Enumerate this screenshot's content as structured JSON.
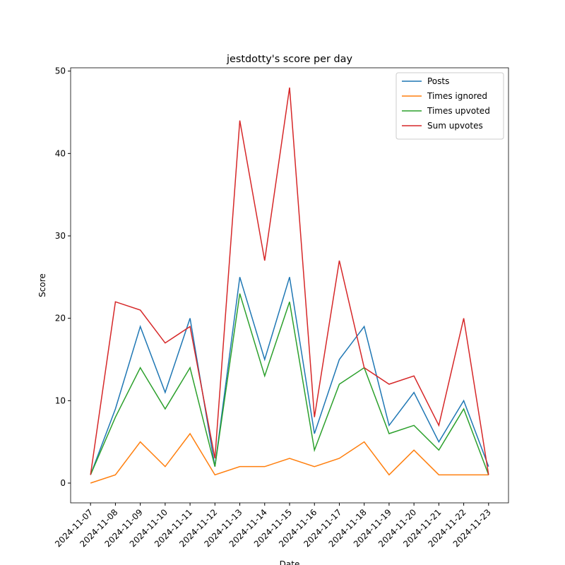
{
  "chart_data": {
    "type": "line",
    "title": "jestdotty's score per day",
    "xlabel": "Date",
    "ylabel": "Score",
    "categories": [
      "2024-11-07",
      "2024-11-08",
      "2024-11-09",
      "2024-11-10",
      "2024-11-11",
      "2024-11-12",
      "2024-11-13",
      "2024-11-14",
      "2024-11-15",
      "2024-11-16",
      "2024-11-17",
      "2024-11-18",
      "2024-11-19",
      "2024-11-20",
      "2024-11-21",
      "2024-11-22",
      "2024-11-23"
    ],
    "series": [
      {
        "name": "Posts",
        "color": "#1f77b4",
        "values": [
          1,
          9,
          19,
          11,
          20,
          2,
          25,
          15,
          25,
          6,
          15,
          19,
          7,
          11,
          5,
          10,
          2
        ]
      },
      {
        "name": "Times ignored",
        "color": "#ff7f0e",
        "values": [
          0,
          1,
          5,
          2,
          6,
          1,
          2,
          2,
          3,
          2,
          3,
          5,
          1,
          4,
          1,
          1,
          1
        ]
      },
      {
        "name": "Times upvoted",
        "color": "#2ca02c",
        "values": [
          1,
          8,
          14,
          9,
          14,
          2,
          23,
          13,
          22,
          4,
          12,
          14,
          6,
          7,
          4,
          9,
          1
        ]
      },
      {
        "name": "Sum upvotes",
        "color": "#d62728",
        "values": [
          1,
          22,
          21,
          17,
          19,
          3,
          44,
          27,
          48,
          8,
          27,
          14,
          12,
          13,
          7,
          20,
          1
        ]
      }
    ],
    "ylim": [
      -2.4,
      50.4
    ],
    "yticks": [
      0,
      10,
      20,
      30,
      40,
      50
    ],
    "legend": "upper right"
  }
}
